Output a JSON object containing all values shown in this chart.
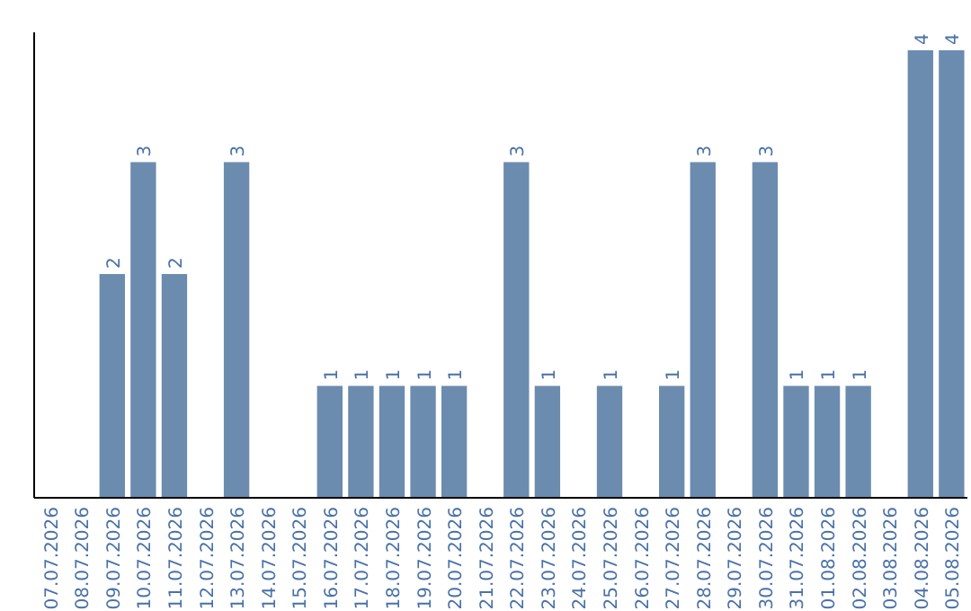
{
  "chart_data": {
    "type": "bar",
    "categories": [
      "07.07.2026",
      "08.07.2026",
      "09.07.2026",
      "10.07.2026",
      "11.07.2026",
      "12.07.2026",
      "13.07.2026",
      "14.07.2026",
      "15.07.2026",
      "16.07.2026",
      "17.07.2026",
      "18.07.2026",
      "19.07.2026",
      "20.07.2026",
      "21.07.2026",
      "22.07.2026",
      "23.07.2026",
      "24.07.2026",
      "25.07.2026",
      "26.07.2026",
      "27.07.2026",
      "28.07.2026",
      "29.07.2026",
      "30.07.2026",
      "31.07.2026",
      "01.08.2026",
      "02.08.2026",
      "03.08.2026",
      "04.08.2026",
      "05.08.2026"
    ],
    "values": [
      0,
      0,
      2,
      3,
      2,
      0,
      3,
      0,
      0,
      1,
      1,
      1,
      1,
      1,
      0,
      3,
      1,
      0,
      1,
      0,
      1,
      3,
      0,
      3,
      1,
      1,
      1,
      0,
      4,
      4
    ],
    "value_labels": [
      null,
      null,
      "2",
      "3",
      "2",
      null,
      "3",
      null,
      null,
      "1",
      "1",
      "1",
      "1",
      "1",
      null,
      "3",
      "1",
      null,
      "1",
      null,
      "1",
      "3",
      null,
      "3",
      "1",
      "1",
      "1",
      null,
      "4",
      "4"
    ],
    "color": "#6b8cae",
    "ylim": [
      0,
      4.16
    ],
    "tick_labels": "x"
  }
}
